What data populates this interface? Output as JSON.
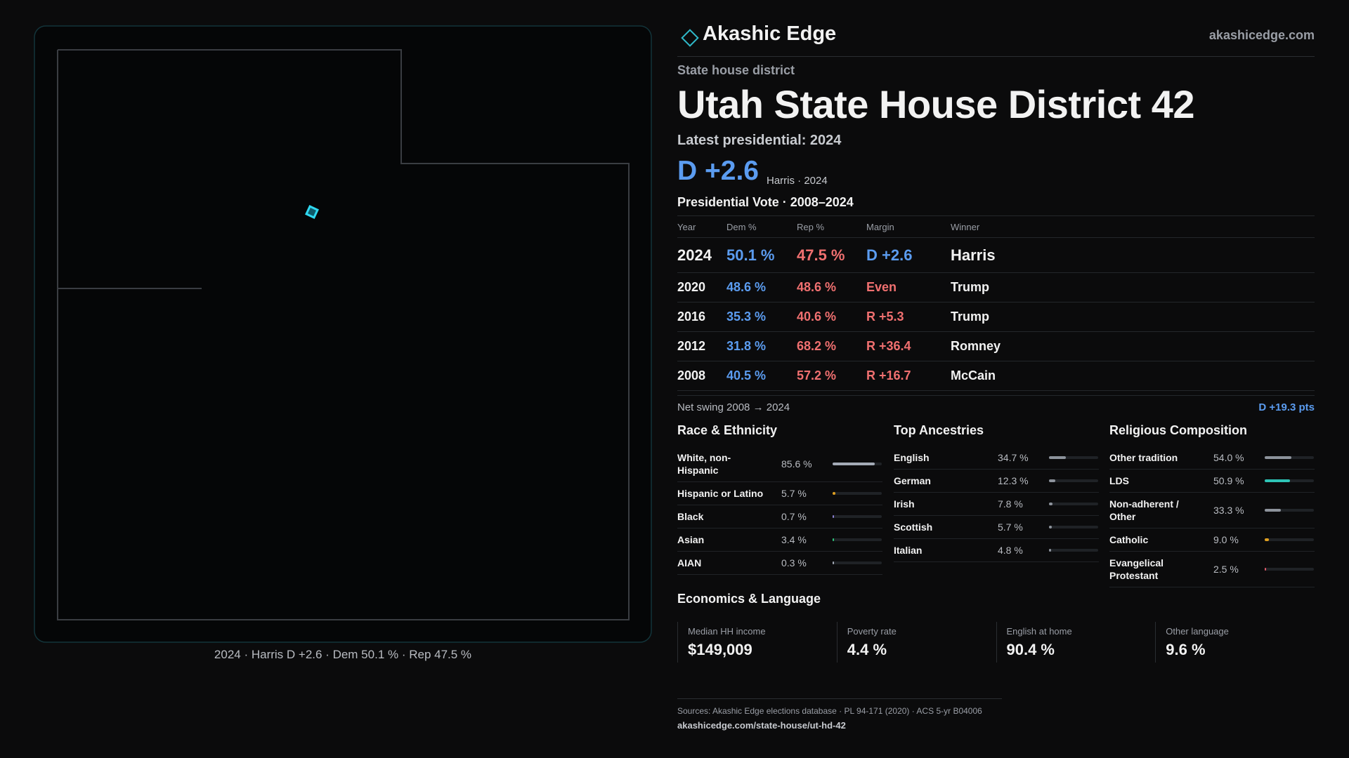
{
  "header": {
    "brand": "Akashic Edge",
    "site": "akashicedge.com"
  },
  "map": {
    "caption": "2024 · Harris D +2.6 · Dem 50.1 % · Rep 47.5 %"
  },
  "district": {
    "kind": "State house district",
    "title": "Utah State House District 42",
    "latest": "Latest presidential: 2024",
    "margin": "D +2.6",
    "margin_note": "Harris · 2024"
  },
  "presidential": {
    "title": "Presidential Vote · 2008–2024",
    "columns": [
      "Year",
      "Dem %",
      "Rep %",
      "Margin",
      "Winner"
    ],
    "rows": [
      [
        "2024",
        "50.1 %",
        "47.5 %",
        "D +2.6",
        "Harris"
      ],
      [
        "2020",
        "48.6 %",
        "48.6 %",
        "Even",
        "Trump"
      ],
      [
        "2016",
        "35.3 %",
        "40.6 %",
        "R +5.3",
        "Trump"
      ],
      [
        "2012",
        "31.8 %",
        "68.2 %",
        "R +36.4",
        "Romney"
      ],
      [
        "2008",
        "40.5 %",
        "57.2 %",
        "R +16.7",
        "McCain"
      ]
    ],
    "margin_colors": [
      "#5b9cf0",
      "#f07070",
      "#f07070",
      "#f07070",
      "#f07070"
    ]
  },
  "swing": {
    "label": "Net swing 2008 → 2024",
    "value": "D +19.3 pts"
  },
  "race": {
    "title": "Race & Ethnicity",
    "items": [
      {
        "name": "White, non-Hispanic",
        "value": 85.6,
        "label": "85.6 %",
        "color": "#a4abb6"
      },
      {
        "name": "Hispanic or Latino",
        "value": 5.7,
        "label": "5.7 %",
        "color": "#e0a020"
      },
      {
        "name": "Black",
        "value": 0.7,
        "label": "0.7 %",
        "color": "#8a7fd0"
      },
      {
        "name": "Asian",
        "value": 3.4,
        "label": "3.4 %",
        "color": "#2ec47a"
      },
      {
        "name": "AIAN",
        "value": 0.3,
        "label": "0.3 %",
        "color": "#a4abb6"
      }
    ]
  },
  "ancestry": {
    "title": "Top Ancestries",
    "items": [
      {
        "name": "English",
        "value": 34.7,
        "label": "34.7 %",
        "color": "#8d939c"
      },
      {
        "name": "German",
        "value": 12.3,
        "label": "12.3 %",
        "color": "#8d939c"
      },
      {
        "name": "Irish",
        "value": 7.8,
        "label": "7.8 %",
        "color": "#8d939c"
      },
      {
        "name": "Scottish",
        "value": 5.7,
        "label": "5.7 %",
        "color": "#8d939c"
      },
      {
        "name": "Italian",
        "value": 4.8,
        "label": "4.8 %",
        "color": "#8d939c"
      }
    ]
  },
  "religion": {
    "title": "Religious Composition",
    "items": [
      {
        "name": "Other tradition",
        "value": 54.0,
        "label": "54.0 %",
        "color": "#8d939c"
      },
      {
        "name": "LDS",
        "value": 50.9,
        "label": "50.9 %",
        "color": "#2ec4b6"
      },
      {
        "name": "Non-adherent / Other",
        "value": 33.3,
        "label": "33.3 %",
        "color": "#8d939c"
      },
      {
        "name": "Catholic",
        "value": 9.0,
        "label": "9.0 %",
        "color": "#e0a020"
      },
      {
        "name": "Evangelical Protestant",
        "value": 2.5,
        "label": "2.5 %",
        "color": "#e05a6a"
      }
    ]
  },
  "economics": {
    "title": "Economics & Language",
    "cards": [
      {
        "label": "Median HH income",
        "value": "$149,009"
      },
      {
        "label": "Poverty rate",
        "value": "4.4 %"
      },
      {
        "label": "English at home",
        "value": "90.4 %"
      },
      {
        "label": "Other language",
        "value": "9.6 %"
      }
    ]
  },
  "sources": {
    "text": "Sources: Akashic Edge elections database · PL 94-171 (2020) · ACS 5-yr B04006",
    "url": "akashicedge.com/state-house/ut-hd-42"
  }
}
